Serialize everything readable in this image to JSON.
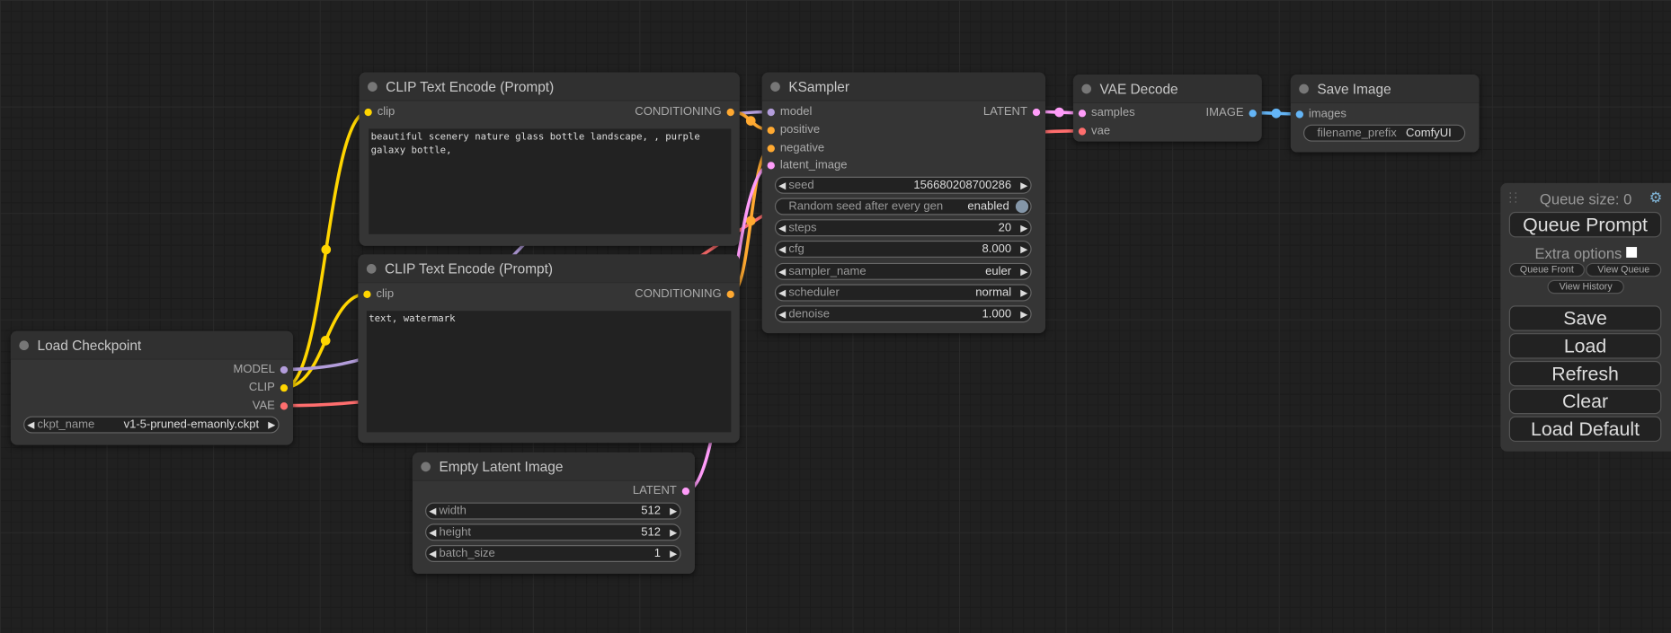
{
  "colors": {
    "MODEL": "#b39ddb",
    "CLIP": "#ffd500",
    "VAE": "#ff6e6e",
    "CONDITIONING": "#ffa931",
    "LATENT": "#ff9cf9",
    "IMAGE": "#64b5f6"
  },
  "nodes": {
    "load_checkpoint": {
      "title": "Load Checkpoint",
      "outputs": [
        {
          "label": "MODEL",
          "type": "MODEL"
        },
        {
          "label": "CLIP",
          "type": "CLIP"
        },
        {
          "label": "VAE",
          "type": "VAE"
        }
      ],
      "widgets": [
        {
          "label": "ckpt_name",
          "value": "v1-5-pruned-emaonly.ckpt"
        }
      ]
    },
    "clip_pos": {
      "title": "CLIP Text Encode (Prompt)",
      "inputs": [
        {
          "label": "clip",
          "type": "CLIP"
        }
      ],
      "outputs": [
        {
          "label": "CONDITIONING",
          "type": "CONDITIONING"
        }
      ],
      "text": "beautiful scenery nature glass bottle landscape, , purple galaxy bottle,"
    },
    "clip_neg": {
      "title": "CLIP Text Encode (Prompt)",
      "inputs": [
        {
          "label": "clip",
          "type": "CLIP"
        }
      ],
      "outputs": [
        {
          "label": "CONDITIONING",
          "type": "CONDITIONING"
        }
      ],
      "text": "text, watermark"
    },
    "empty_latent": {
      "title": "Empty Latent Image",
      "outputs": [
        {
          "label": "LATENT",
          "type": "LATENT"
        }
      ],
      "widgets": [
        {
          "label": "width",
          "value": "512"
        },
        {
          "label": "height",
          "value": "512"
        },
        {
          "label": "batch_size",
          "value": "1"
        }
      ]
    },
    "ksampler": {
      "title": "KSampler",
      "inputs": [
        {
          "label": "model",
          "type": "MODEL"
        },
        {
          "label": "positive",
          "type": "CONDITIONING"
        },
        {
          "label": "negative",
          "type": "CONDITIONING"
        },
        {
          "label": "latent_image",
          "type": "LATENT"
        }
      ],
      "outputs": [
        {
          "label": "LATENT",
          "type": "LATENT"
        }
      ],
      "widgets": [
        {
          "label": "seed",
          "value": "156680208700286"
        },
        {
          "label": "Random seed after every gen",
          "value": "enabled",
          "toggle": true
        },
        {
          "label": "steps",
          "value": "20"
        },
        {
          "label": "cfg",
          "value": "8.000"
        },
        {
          "label": "sampler_name",
          "value": "euler"
        },
        {
          "label": "scheduler",
          "value": "normal"
        },
        {
          "label": "denoise",
          "value": "1.000"
        }
      ]
    },
    "vae_decode": {
      "title": "VAE Decode",
      "inputs": [
        {
          "label": "samples",
          "type": "LATENT"
        },
        {
          "label": "vae",
          "type": "VAE"
        }
      ],
      "outputs": [
        {
          "label": "IMAGE",
          "type": "IMAGE"
        }
      ]
    },
    "save_image": {
      "title": "Save Image",
      "inputs": [
        {
          "label": "images",
          "type": "IMAGE"
        }
      ],
      "widgets": [
        {
          "label": "filename_prefix",
          "value": "ComfyUI",
          "plain": true
        }
      ]
    }
  },
  "panel": {
    "queue_size": "Queue size: 0",
    "queue_prompt": "Queue Prompt",
    "extra_options": "Extra options",
    "queue_front": "Queue Front",
    "view_queue": "View Queue",
    "view_history": "View History",
    "save": "Save",
    "load": "Load",
    "refresh": "Refresh",
    "clear": "Clear",
    "load_default": "Load Default"
  }
}
